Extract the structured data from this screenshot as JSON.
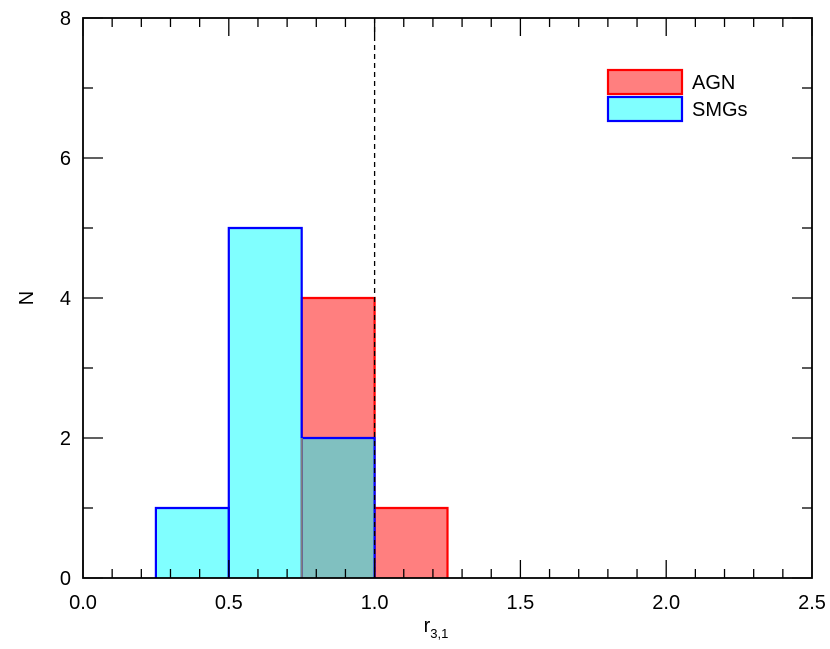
{
  "chart_data": {
    "type": "bar",
    "title": "",
    "xlabel": "r",
    "xlabel_subscript": "3,1",
    "ylabel": "N",
    "xlim": [
      0.0,
      2.5
    ],
    "ylim": [
      0,
      8
    ],
    "x_ticks": [
      "0.0",
      "0.5",
      "1.0",
      "1.5",
      "2.0",
      "2.5"
    ],
    "y_ticks": [
      "0",
      "2",
      "4",
      "6",
      "8"
    ],
    "bin_edges": [
      0.25,
      0.5,
      0.75,
      1.0,
      1.25
    ],
    "reference_line_x": 1.0,
    "legend_position": "top-right",
    "series": [
      {
        "name": "AGN",
        "fill": "#ff7f7f",
        "edge": "#ff0000",
        "bins": [
          {
            "x0": 0.75,
            "x1": 1.0,
            "count": 4
          },
          {
            "x0": 1.0,
            "x1": 1.25,
            "count": 1
          }
        ]
      },
      {
        "name": "SMGs",
        "fill": "#80ffff",
        "edge": "#0000ff",
        "bins": [
          {
            "x0": 0.25,
            "x1": 0.5,
            "count": 1
          },
          {
            "x0": 0.5,
            "x1": 0.75,
            "count": 5
          },
          {
            "x0": 0.75,
            "x1": 1.0,
            "count": 2
          }
        ]
      }
    ],
    "overlap_fill": "#80c0c0",
    "overlap_edge": "#808080"
  }
}
